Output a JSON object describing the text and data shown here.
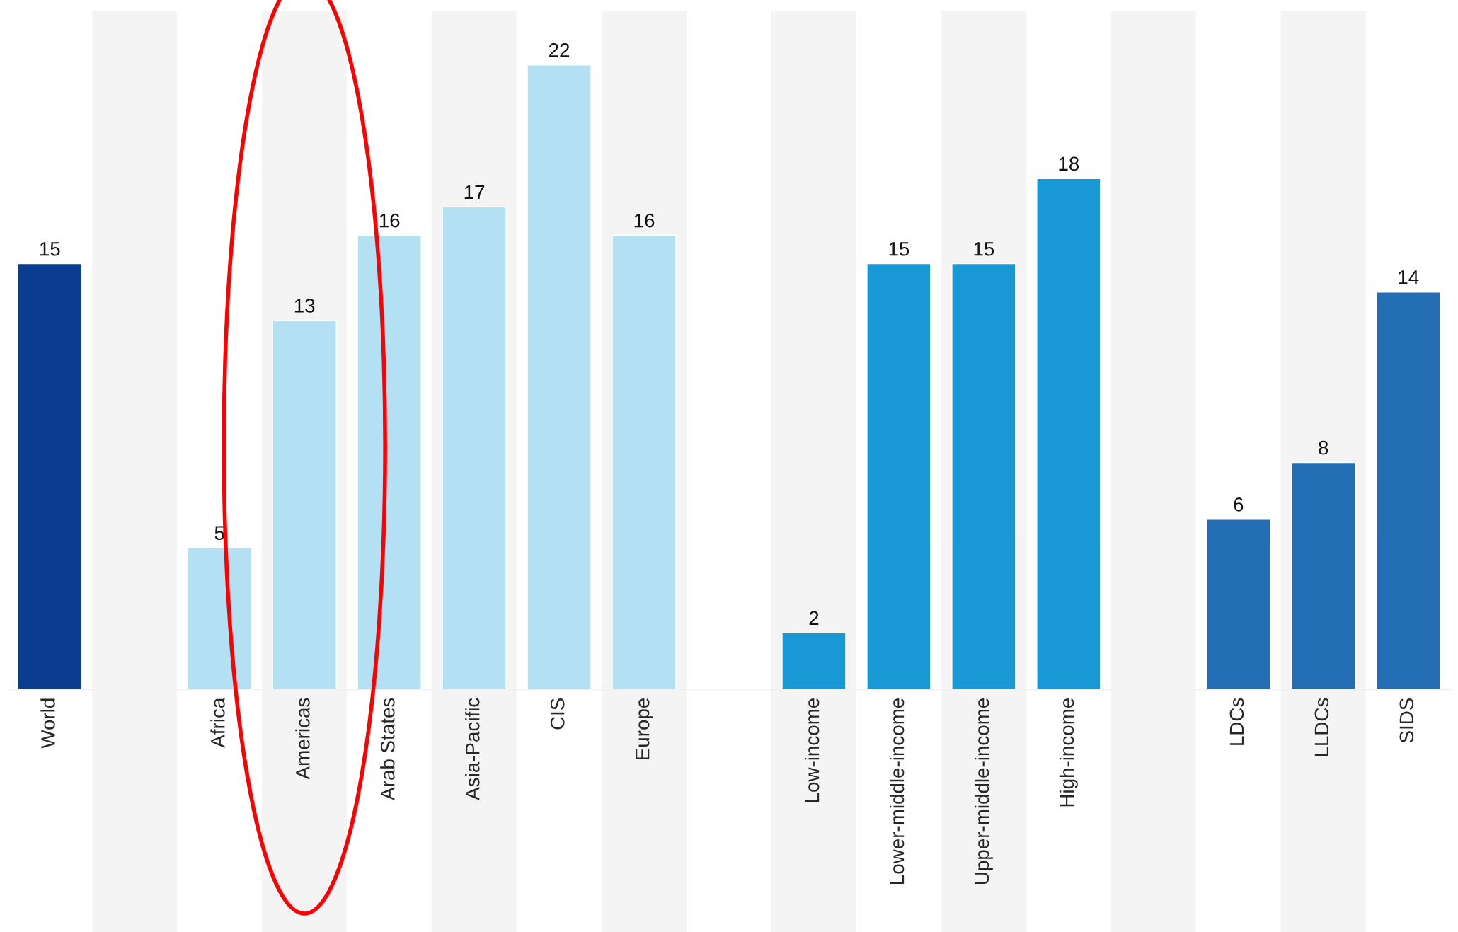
{
  "chart_data": {
    "type": "bar",
    "categories": [
      "World",
      null,
      "Africa",
      "Americas",
      "Arab States",
      "Asia-Pacific",
      "CIS",
      "Europe",
      null,
      "Low-income",
      "Lower-middle-income",
      "Upper-middle-income",
      "High-income",
      null,
      "LDCs",
      "LLDCs",
      "SIDS"
    ],
    "values": [
      15,
      null,
      5,
      13,
      16,
      17,
      22,
      16,
      null,
      2,
      15,
      15,
      18,
      null,
      6,
      8,
      14
    ],
    "colors": [
      "#0a3d8f",
      null,
      "#b3e0f3",
      "#b3e0f3",
      "#b3e0f3",
      "#b3e0f3",
      "#b3e0f3",
      "#b3e0f3",
      null,
      "#1899d6",
      "#1899d6",
      "#1899d6",
      "#1899d6",
      null,
      "#236db5",
      "#236db5",
      "#236db5"
    ],
    "data_labels": true,
    "tick_labels": "x",
    "grid": false,
    "legend": false
  }
}
